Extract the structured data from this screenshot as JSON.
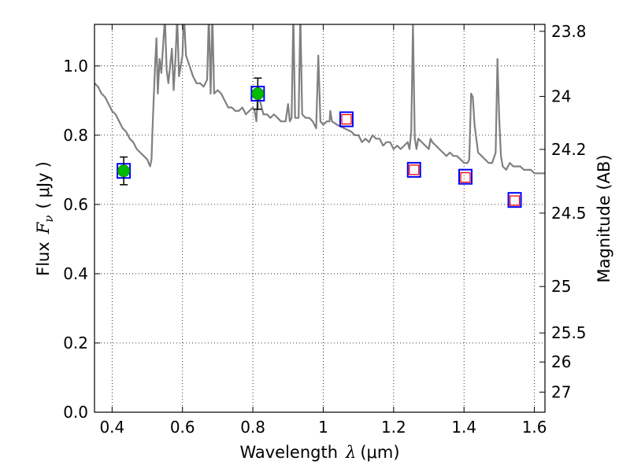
{
  "chart_data": {
    "type": "scatter",
    "xlabel": "Wavelength",
    "xlabel_symbol": "λ",
    "xlabel_unit": "(μm)",
    "ylabel": "Flux",
    "ylabel_symbol": "F",
    "ylabel_subscript": "ν",
    "ylabel_unit_open": "(",
    "ylabel_unit": "μJy",
    "ylabel_unit_close": ")",
    "y2label": "Magnitude (AB)",
    "xlim": [
      0.35,
      1.63
    ],
    "ylim": [
      0.0,
      1.12
    ],
    "grid": true,
    "grid_style": "dotted",
    "x_ticks": [
      0.4,
      0.6,
      0.8,
      1.0,
      1.2,
      1.4,
      1.6
    ],
    "x_tick_labels": [
      "0.4",
      "0.6",
      "0.8",
      "1",
      "1.2",
      "1.4",
      "1.6"
    ],
    "y_ticks": [
      0.0,
      0.2,
      0.4,
      0.6,
      0.8,
      1.0
    ],
    "y_tick_labels": [
      "0.0",
      "0.2",
      "0.4",
      "0.6",
      "0.8",
      "1.0"
    ],
    "y2_ticks": [
      {
        "label": "23.8",
        "flux": 1.1
      },
      {
        "label": "24",
        "flux": 0.912
      },
      {
        "label": "24.2",
        "flux": 0.759
      },
      {
        "label": "24.5",
        "flux": 0.575
      },
      {
        "label": "25",
        "flux": 0.363
      },
      {
        "label": "25.5",
        "flux": 0.229
      },
      {
        "label": "26",
        "flux": 0.145
      },
      {
        "label": "27",
        "flux": 0.058
      }
    ],
    "series": [
      {
        "kind": "spectrum",
        "color": "#808080",
        "points": [
          [
            0.35,
            0.95
          ],
          [
            0.36,
            0.94
          ],
          [
            0.37,
            0.92
          ],
          [
            0.38,
            0.91
          ],
          [
            0.39,
            0.89
          ],
          [
            0.4,
            0.87
          ],
          [
            0.41,
            0.86
          ],
          [
            0.42,
            0.84
          ],
          [
            0.43,
            0.82
          ],
          [
            0.44,
            0.81
          ],
          [
            0.45,
            0.79
          ],
          [
            0.46,
            0.78
          ],
          [
            0.47,
            0.76
          ],
          [
            0.48,
            0.75
          ],
          [
            0.49,
            0.74
          ],
          [
            0.5,
            0.73
          ],
          [
            0.508,
            0.71
          ],
          [
            0.512,
            0.73
          ],
          [
            0.515,
            0.82
          ],
          [
            0.518,
            0.9
          ],
          [
            0.52,
            0.95
          ],
          [
            0.522,
            1.0
          ],
          [
            0.526,
            1.08
          ],
          [
            0.53,
            0.92
          ],
          [
            0.535,
            1.02
          ],
          [
            0.54,
            0.98
          ],
          [
            0.55,
            1.14
          ],
          [
            0.555,
            0.99
          ],
          [
            0.56,
            0.95
          ],
          [
            0.57,
            1.05
          ],
          [
            0.575,
            0.93
          ],
          [
            0.58,
            1.02
          ],
          [
            0.585,
            1.14
          ],
          [
            0.59,
            0.97
          ],
          [
            0.6,
            1.03
          ],
          [
            0.604,
            1.15
          ],
          [
            0.61,
            1.03
          ],
          [
            0.62,
            1.0
          ],
          [
            0.63,
            0.97
          ],
          [
            0.64,
            0.95
          ],
          [
            0.65,
            0.95
          ],
          [
            0.66,
            0.94
          ],
          [
            0.67,
            0.96
          ],
          [
            0.675,
            1.15
          ],
          [
            0.68,
            0.92
          ],
          [
            0.685,
            1.15
          ],
          [
            0.69,
            0.92
          ],
          [
            0.7,
            0.93
          ],
          [
            0.71,
            0.92
          ],
          [
            0.72,
            0.9
          ],
          [
            0.73,
            0.88
          ],
          [
            0.74,
            0.88
          ],
          [
            0.75,
            0.87
          ],
          [
            0.76,
            0.87
          ],
          [
            0.77,
            0.88
          ],
          [
            0.78,
            0.86
          ],
          [
            0.79,
            0.87
          ],
          [
            0.8,
            0.88
          ],
          [
            0.805,
            0.87
          ],
          [
            0.81,
            0.84
          ],
          [
            0.815,
            0.94
          ],
          [
            0.82,
            0.9
          ],
          [
            0.83,
            0.86
          ],
          [
            0.84,
            0.86
          ],
          [
            0.85,
            0.85
          ],
          [
            0.86,
            0.86
          ],
          [
            0.87,
            0.85
          ],
          [
            0.88,
            0.84
          ],
          [
            0.893,
            0.84
          ],
          [
            0.9,
            0.89
          ],
          [
            0.905,
            0.84
          ],
          [
            0.91,
            0.85
          ],
          [
            0.915,
            1.15
          ],
          [
            0.92,
            0.85
          ],
          [
            0.93,
            0.85
          ],
          [
            0.935,
            1.15
          ],
          [
            0.94,
            0.86
          ],
          [
            0.95,
            0.85
          ],
          [
            0.96,
            0.85
          ],
          [
            0.97,
            0.84
          ],
          [
            0.975,
            0.83
          ],
          [
            0.98,
            0.82
          ],
          [
            0.986,
            1.03
          ],
          [
            0.992,
            0.84
          ],
          [
            1.0,
            0.83
          ],
          [
            1.01,
            0.84
          ],
          [
            1.018,
            0.84
          ],
          [
            1.02,
            0.87
          ],
          [
            1.025,
            0.84
          ],
          [
            1.04,
            0.83
          ],
          [
            1.06,
            0.82
          ],
          [
            1.08,
            0.81
          ],
          [
            1.09,
            0.8
          ],
          [
            1.1,
            0.8
          ],
          [
            1.11,
            0.78
          ],
          [
            1.12,
            0.79
          ],
          [
            1.13,
            0.78
          ],
          [
            1.14,
            0.8
          ],
          [
            1.15,
            0.79
          ],
          [
            1.16,
            0.79
          ],
          [
            1.17,
            0.77
          ],
          [
            1.18,
            0.78
          ],
          [
            1.19,
            0.78
          ],
          [
            1.2,
            0.76
          ],
          [
            1.21,
            0.77
          ],
          [
            1.22,
            0.76
          ],
          [
            1.23,
            0.77
          ],
          [
            1.24,
            0.78
          ],
          [
            1.245,
            0.76
          ],
          [
            1.25,
            0.81
          ],
          [
            1.255,
            1.12
          ],
          [
            1.26,
            0.79
          ],
          [
            1.265,
            0.76
          ],
          [
            1.27,
            0.79
          ],
          [
            1.28,
            0.78
          ],
          [
            1.29,
            0.77
          ],
          [
            1.3,
            0.76
          ],
          [
            1.305,
            0.79
          ],
          [
            1.31,
            0.78
          ],
          [
            1.32,
            0.77
          ],
          [
            1.33,
            0.76
          ],
          [
            1.34,
            0.75
          ],
          [
            1.35,
            0.74
          ],
          [
            1.36,
            0.75
          ],
          [
            1.37,
            0.74
          ],
          [
            1.38,
            0.74
          ],
          [
            1.39,
            0.73
          ],
          [
            1.4,
            0.72
          ],
          [
            1.41,
            0.72
          ],
          [
            1.415,
            0.73
          ],
          [
            1.42,
            0.92
          ],
          [
            1.425,
            0.91
          ],
          [
            1.43,
            0.83
          ],
          [
            1.44,
            0.75
          ],
          [
            1.45,
            0.74
          ],
          [
            1.46,
            0.73
          ],
          [
            1.47,
            0.72
          ],
          [
            1.48,
            0.72
          ],
          [
            1.49,
            0.75
          ],
          [
            1.495,
            1.02
          ],
          [
            1.5,
            0.85
          ],
          [
            1.505,
            0.74
          ],
          [
            1.51,
            0.71
          ],
          [
            1.52,
            0.7
          ],
          [
            1.53,
            0.72
          ],
          [
            1.54,
            0.71
          ],
          [
            1.55,
            0.71
          ],
          [
            1.56,
            0.71
          ],
          [
            1.57,
            0.7
          ],
          [
            1.58,
            0.7
          ],
          [
            1.59,
            0.7
          ],
          [
            1.6,
            0.69
          ],
          [
            1.61,
            0.69
          ],
          [
            1.62,
            0.69
          ],
          [
            1.63,
            0.69
          ]
        ]
      },
      {
        "kind": "model_boxes",
        "color": "#0000ff",
        "points": [
          {
            "x": 0.433,
            "y": 0.697
          },
          {
            "x": 0.814,
            "y": 0.92
          },
          {
            "x": 1.066,
            "y": 0.846
          },
          {
            "x": 1.258,
            "y": 0.7
          },
          {
            "x": 1.404,
            "y": 0.68
          },
          {
            "x": 1.544,
            "y": 0.613
          }
        ]
      },
      {
        "kind": "observed_detections",
        "color": "#00bb00",
        "errcolor": "#000000",
        "points": [
          {
            "x": 0.433,
            "y": 0.697,
            "err": 0.04
          },
          {
            "x": 0.814,
            "y": 0.92,
            "err": 0.045
          }
        ]
      },
      {
        "kind": "predicted_boxes",
        "color": "#ff0000",
        "points": [
          {
            "x": 1.066,
            "y": 0.846
          },
          {
            "x": 1.258,
            "y": 0.7
          },
          {
            "x": 1.404,
            "y": 0.678
          },
          {
            "x": 1.544,
            "y": 0.611
          }
        ]
      }
    ]
  }
}
